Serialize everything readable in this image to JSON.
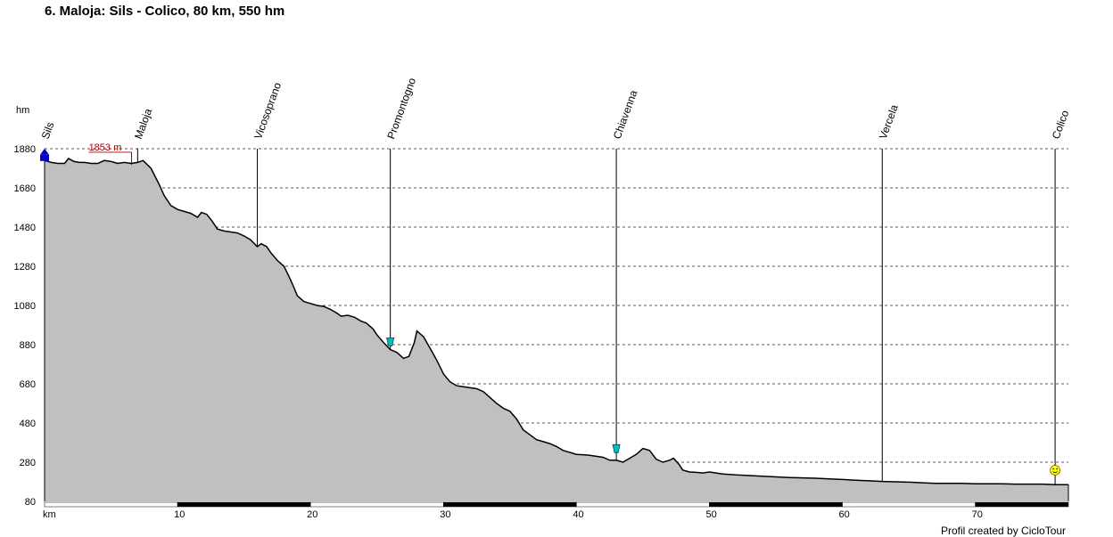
{
  "title": "6. Maloja: Sils - Colico, 80 km, 550 hm",
  "footer": "Profil created by CicloTour",
  "chart_data": {
    "type": "area",
    "title": "6. Maloja: Sils - Colico, 80 km, 550 hm",
    "xlabel": "km",
    "ylabel": "hm",
    "xlim": [
      0,
      77
    ],
    "ylim": [
      80,
      1880
    ],
    "x_ticks": [
      10,
      20,
      30,
      40,
      50,
      60,
      70
    ],
    "y_ticks": [
      80,
      280,
      480,
      680,
      880,
      1080,
      1280,
      1480,
      1680,
      1880
    ],
    "grid": true,
    "fill_color": "#c0c0c0",
    "line_color": "#000000",
    "series": [
      {
        "x": [
          0,
          0.5,
          1,
          1.5,
          1.8,
          2.2,
          2.6,
          3,
          3.5,
          4,
          4.5,
          5,
          5.5,
          6,
          6.5,
          7,
          7.4,
          8,
          8.6,
          9,
          9.5,
          10,
          10.5,
          11,
          11.5,
          11.8,
          12.2,
          12.6,
          13,
          13.5,
          14,
          14.5,
          15,
          15.5,
          16,
          16.3,
          16.7,
          17,
          17.5,
          18,
          18.3,
          18.7,
          19,
          19.5,
          20,
          20.5,
          21,
          21.5,
          22,
          22.3,
          22.8,
          23.3,
          23.8,
          24.2,
          24.7,
          25,
          25.5,
          26,
          26.5,
          27,
          27.4,
          27.8,
          28,
          28.5,
          29,
          29.5,
          30,
          30.5,
          31,
          31.5,
          32,
          32.5,
          33,
          33.5,
          34,
          34.5,
          35,
          35.5,
          36,
          36.5,
          37,
          37.5,
          38,
          38.5,
          39,
          39.5,
          40,
          40.5,
          41,
          41.5,
          42,
          42.5,
          43,
          43.5,
          44,
          44.5,
          45,
          45.5,
          46,
          46.5,
          47,
          47.3,
          47.7,
          48,
          48.5,
          49,
          49.5,
          50,
          51,
          52,
          53,
          54,
          55,
          56,
          57,
          58,
          59,
          60,
          61,
          62,
          63,
          64,
          65,
          66,
          67,
          68,
          69,
          70,
          71,
          72,
          73,
          74,
          75,
          76,
          77
        ],
        "y": [
          1820,
          1810,
          1805,
          1805,
          1830,
          1815,
          1810,
          1810,
          1805,
          1805,
          1820,
          1815,
          1805,
          1810,
          1805,
          1810,
          1820,
          1780,
          1700,
          1640,
          1590,
          1570,
          1560,
          1550,
          1530,
          1555,
          1545,
          1510,
          1470,
          1460,
          1455,
          1450,
          1435,
          1415,
          1380,
          1395,
          1380,
          1350,
          1310,
          1280,
          1240,
          1180,
          1130,
          1100,
          1090,
          1080,
          1075,
          1060,
          1040,
          1025,
          1030,
          1020,
          1000,
          990,
          960,
          930,
          890,
          855,
          840,
          810,
          820,
          890,
          950,
          920,
          860,
          800,
          730,
          690,
          670,
          665,
          660,
          655,
          640,
          610,
          580,
          555,
          540,
          500,
          445,
          420,
          395,
          385,
          375,
          360,
          340,
          330,
          320,
          318,
          315,
          310,
          305,
          290,
          290,
          280,
          300,
          320,
          350,
          340,
          295,
          280,
          290,
          300,
          270,
          240,
          230,
          228,
          225,
          230,
          220,
          215,
          212,
          208,
          205,
          202,
          200,
          198,
          195,
          192,
          188,
          185,
          182,
          180,
          178,
          175,
          172,
          172,
          172,
          170,
          170,
          170,
          168,
          168,
          168,
          165,
          165
        ]
      }
    ],
    "annotations": [
      {
        "label": "1853 m",
        "x": 4.8,
        "y": 1853
      }
    ],
    "places": [
      {
        "name": "Sils",
        "km": 0
      },
      {
        "name": "Maloja",
        "km": 7
      },
      {
        "name": "Vicosoprano",
        "km": 16
      },
      {
        "name": "Promontogno",
        "km": 26
      },
      {
        "name": "Chiavenna",
        "km": 43
      },
      {
        "name": "Vercela",
        "km": 63
      },
      {
        "name": "Colico",
        "km": 76
      }
    ],
    "pois": [
      {
        "type": "start-flag",
        "km": 0,
        "y": 1840,
        "color": "#0000c0"
      },
      {
        "type": "drink",
        "km": 26,
        "y": 860,
        "color": "#00c0c0"
      },
      {
        "type": "drink",
        "km": 43,
        "y": 315,
        "color": "#00c0c0"
      },
      {
        "type": "finish-smiley",
        "km": 76,
        "y": 230,
        "color": "#ffff00"
      }
    ]
  }
}
